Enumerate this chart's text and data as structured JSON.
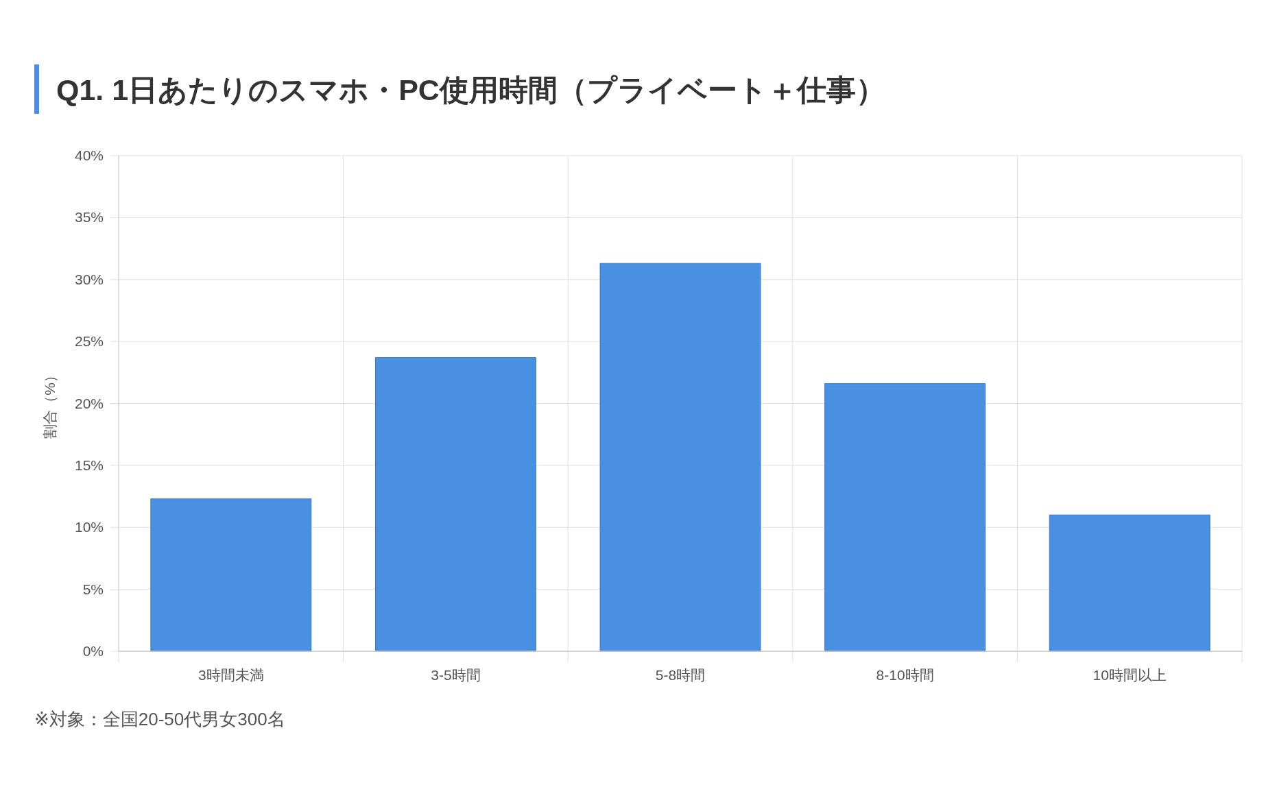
{
  "chart_data": {
    "type": "bar",
    "title": "Q1. 1日あたりのスマホ・PC使用時間（プライベート＋仕事）",
    "ylabel": "割合（%）",
    "categories": [
      "3時間未満",
      "3-5時間",
      "5-8時間",
      "8-10時間",
      "10時間以上"
    ],
    "values": [
      12.3,
      23.7,
      31.3,
      21.6,
      11.0
    ],
    "color": "#4a90e2",
    "ylim": [
      0,
      40
    ],
    "yticks": [
      {
        "value": 0,
        "label": "0%"
      },
      {
        "value": 5,
        "label": "5%"
      },
      {
        "value": 10,
        "label": "10%"
      },
      {
        "value": 15,
        "label": "15%"
      },
      {
        "value": 20,
        "label": "20%"
      },
      {
        "value": 25,
        "label": "25%"
      },
      {
        "value": 30,
        "label": "30%"
      },
      {
        "value": 35,
        "label": "35%"
      },
      {
        "value": 40,
        "label": "40%"
      }
    ],
    "grid": true,
    "annotations": [
      "※対象：全国20-50代男女300名"
    ]
  }
}
